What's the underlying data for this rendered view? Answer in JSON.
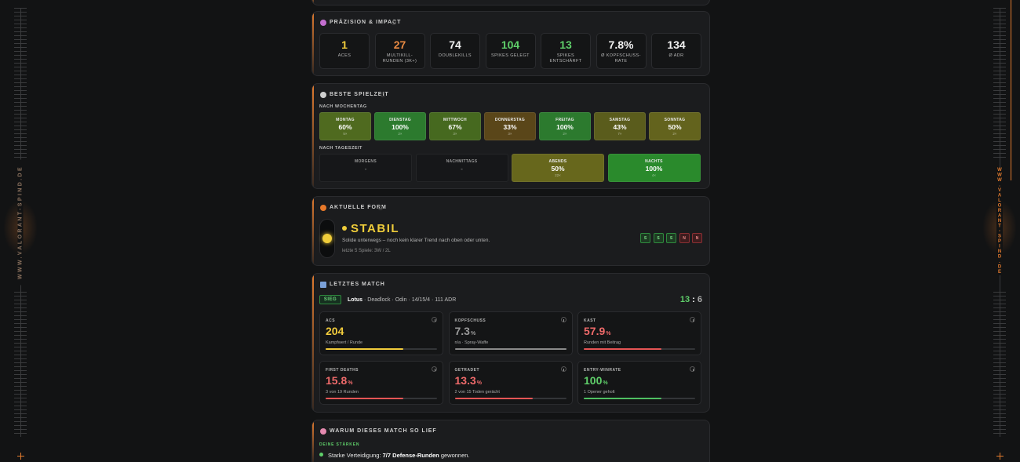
{
  "brand": "WWW.VALORANT-SPIND.DE",
  "precision": {
    "title": "PRÄZISION & IMPACT",
    "stats": [
      {
        "value": "1",
        "label": "ACES"
      },
      {
        "value": "27",
        "label": "MULTIKILL-RUNDEN (3K+)"
      },
      {
        "value": "74",
        "label": "DOUBLEKILLS"
      },
      {
        "value": "104",
        "label": "SPIKES GELEGT"
      },
      {
        "value": "13",
        "label": "SPIKES ENTSCHÄRFT"
      },
      {
        "value": "7.8%",
        "label": "Ø KOPFSCHUSS-RATE"
      },
      {
        "value": "134",
        "label": "Ø ADR"
      }
    ]
  },
  "playtime": {
    "title": "BESTE SPIELZEIT",
    "weekday_heading": "NACH WOCHENTAG",
    "weekdays": [
      {
        "label": "MONTAG",
        "value": "60%",
        "count": "5×"
      },
      {
        "label": "DIENSTAG",
        "value": "100%",
        "count": "2×"
      },
      {
        "label": "MITTWOCH",
        "value": "67%",
        "count": "3×"
      },
      {
        "label": "DONNERSTAG",
        "value": "33%",
        "count": "3×"
      },
      {
        "label": "FREITAG",
        "value": "100%",
        "count": "2×"
      },
      {
        "label": "SAMSTAG",
        "value": "43%",
        "count": "7×"
      },
      {
        "label": "SONNTAG",
        "value": "50%",
        "count": "2×"
      }
    ],
    "daytime_heading": "NACH TAGESZEIT",
    "daytimes": [
      {
        "label": "MORGENS",
        "value": "-"
      },
      {
        "label": "NACHMITTAGS",
        "value": "-"
      },
      {
        "label": "ABENDS",
        "value": "50%",
        "count": "22×"
      },
      {
        "label": "NACHTS",
        "value": "100%",
        "count": "4×"
      }
    ]
  },
  "form": {
    "title": "AKTUELLE FORM",
    "status": "STABIL",
    "description": "Solide unterwegs – noch kein klarer Trend nach oben oder unten.",
    "recent": "letzte 5 Spiele: 3W / 2L",
    "results": [
      "S",
      "S",
      "S",
      "N",
      "N"
    ]
  },
  "last_match": {
    "title": "LETZTES MATCH",
    "result": "SIEG",
    "map": "Lotus",
    "details": "· Deadlock · Odin · 14/15/4 · 111 ADR",
    "score": {
      "own": "13",
      "separator": ":",
      "enemy": "6"
    },
    "cards": [
      {
        "label": "ACS",
        "value": "204",
        "sub": "Kampfwert / Runde"
      },
      {
        "label": "KOPFSCHUSS",
        "value": "7.3",
        "unit": "%",
        "sub": "n/a · Spray-Waffe"
      },
      {
        "label": "KAST",
        "value": "57.9",
        "unit": "%",
        "sub": "Runden mit Beitrag"
      },
      {
        "label": "FIRST DEATHS",
        "value": "15.8",
        "unit": "%",
        "sub": "3 von 19 Runden"
      },
      {
        "label": "GETRADET",
        "value": "13.3",
        "unit": "%",
        "sub": "2 von 15 Toden gerächt"
      },
      {
        "label": "ENTRY-WINRATE",
        "value": "100",
        "unit": "%",
        "sub": "1 Opener geholt"
      }
    ]
  },
  "analysis": {
    "title": "WARUM DIESES MATCH SO LIEF",
    "strengths_heading": "DEINE STÄRKEN",
    "strengths": [
      {
        "text": "Starke Verteidigung: ",
        "highlight": "7/7 Defense-Runden",
        "suffix": " gewonnen."
      }
    ]
  }
}
